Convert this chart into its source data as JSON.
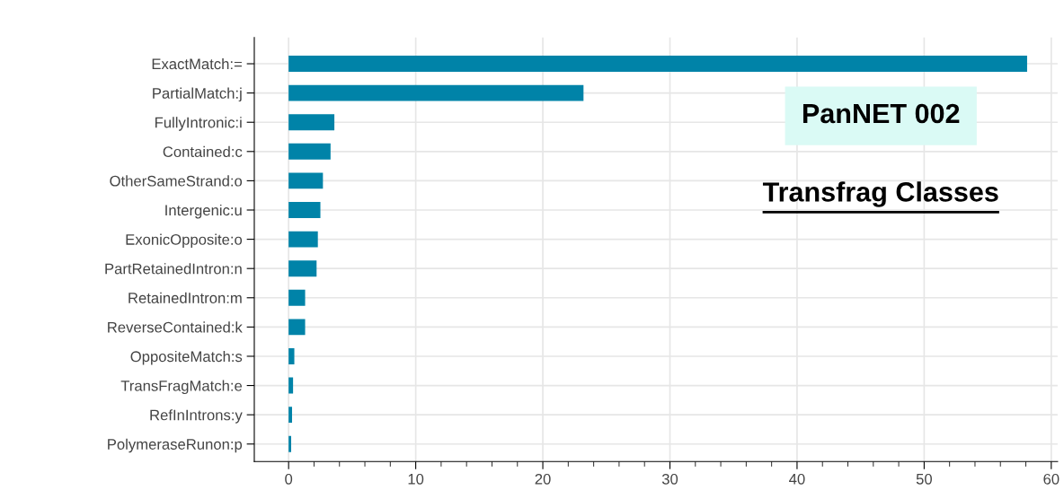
{
  "chart_data": {
    "type": "bar",
    "orientation": "horizontal",
    "title": "PanNET 002",
    "subtitle": "Transfrag Classes",
    "categories": [
      "ExactMatch:=",
      "PartialMatch:j",
      "FullyIntronic:i",
      "Contained:c",
      "OtherSameStrand:o",
      "Intergenic:u",
      "ExonicOpposite:o",
      "PartRetainedIntron:n",
      "RetainedIntron:m",
      "ReverseContained:k",
      "OppositeMatch:s",
      "TransFragMatch:e",
      "RefInIntrons:y",
      "PolymeraseRunon:p"
    ],
    "values": [
      58.1,
      23.2,
      3.6,
      3.3,
      2.7,
      2.5,
      2.3,
      2.2,
      1.3,
      1.3,
      0.45,
      0.35,
      0.27,
      0.2
    ],
    "color": "#0083a8",
    "xlim": [
      -2.7,
      60.5
    ],
    "xticks": [
      0,
      {
        "value": 2,
        "label": null
      },
      {
        "value": 4,
        "label": null
      },
      {
        "value": 6,
        "label": null
      },
      {
        "value": 8,
        "label": null
      },
      10,
      {
        "value": 12,
        "label": null
      },
      {
        "value": 14,
        "label": null
      },
      {
        "value": 16,
        "label": null
      },
      {
        "value": 18,
        "label": null
      },
      20,
      {
        "value": 22,
        "label": null
      },
      {
        "value": 24,
        "label": null
      },
      {
        "value": 26,
        "label": null
      },
      {
        "value": 28,
        "label": null
      },
      30,
      {
        "value": 32,
        "label": null
      },
      {
        "value": 34,
        "label": null
      },
      {
        "value": 36,
        "label": null
      },
      {
        "value": 38,
        "label": null
      },
      40,
      {
        "value": 42,
        "label": null
      },
      {
        "value": 44,
        "label": null
      },
      {
        "value": 46,
        "label": null
      },
      {
        "value": 48,
        "label": null
      },
      50,
      {
        "value": 52,
        "label": null
      },
      {
        "value": 54,
        "label": null
      },
      {
        "value": 56,
        "label": null
      },
      {
        "value": 58,
        "label": null
      },
      60
    ],
    "grid": true
  }
}
